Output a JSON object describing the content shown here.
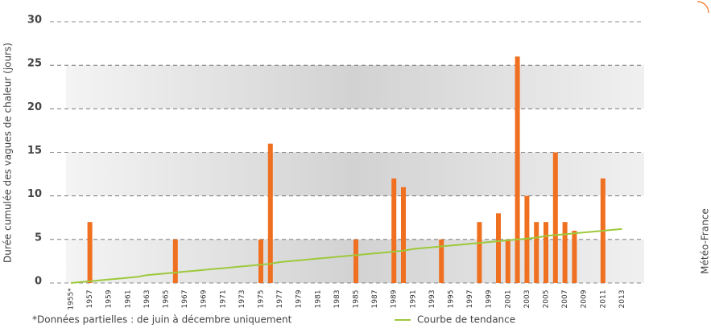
{
  "chart_data": {
    "type": "bar",
    "y_label": "Durée cumulée des vagues de chaleur (jours)",
    "footnote": "*Données partielles : de juin à décembre uniquement",
    "source": "Météo-France",
    "categories": [
      "1955*",
      null,
      "1957",
      null,
      "1959",
      null,
      "1961",
      null,
      "1963",
      null,
      "1965",
      null,
      "1967",
      null,
      "1969",
      null,
      "1971",
      null,
      "1973",
      null,
      "1975",
      null,
      "1977",
      null,
      "1979",
      null,
      "1981",
      null,
      "1983",
      null,
      "1985",
      null,
      "1987",
      null,
      "1989",
      null,
      "1991",
      null,
      "1993",
      null,
      "1995",
      null,
      "1997",
      null,
      "1999",
      null,
      "2001",
      null,
      "2003",
      null,
      "2005",
      null,
      "2007",
      null,
      "2009",
      null,
      "2011",
      null,
      "2013"
    ],
    "series": [
      {
        "name": "Durée",
        "color": "#f07021",
        "values": [
          0,
          0,
          7,
          0,
          0,
          0,
          0,
          0,
          0,
          0,
          0,
          5,
          0,
          0,
          0,
          0,
          0,
          0,
          0,
          0,
          5,
          16,
          0,
          0,
          0,
          0,
          0,
          0,
          0,
          0,
          5,
          0,
          0,
          0,
          12,
          11,
          0,
          0,
          0,
          5,
          0,
          0,
          0,
          7,
          0,
          8,
          5,
          26,
          10,
          7,
          7,
          15,
          7,
          6,
          0,
          0,
          12,
          0,
          0
        ]
      },
      {
        "name": "Courbe de tendance",
        "type": "line",
        "color": "#9dc93b",
        "values": [
          0,
          0.1,
          0.2,
          0.3,
          0.4,
          0.5,
          0.6,
          0.7,
          0.9,
          1.0,
          1.1,
          1.2,
          1.3,
          1.4,
          1.5,
          1.6,
          1.7,
          1.8,
          1.9,
          2.0,
          2.1,
          2.2,
          2.4,
          2.5,
          2.6,
          2.7,
          2.8,
          2.9,
          3.0,
          3.1,
          3.2,
          3.3,
          3.4,
          3.5,
          3.6,
          3.7,
          3.9,
          4.0,
          4.1,
          4.2,
          4.3,
          4.4,
          4.5,
          4.6,
          4.7,
          4.8,
          4.9,
          5.0,
          5.1,
          5.2,
          5.4,
          5.5,
          5.6,
          5.7,
          5.8,
          5.9,
          6.0,
          6.1,
          6.2
        ]
      }
    ],
    "ylim": [
      0,
      30
    ],
    "yticks": [
      0,
      5,
      10,
      15,
      20,
      25,
      30
    ],
    "grid": true
  }
}
